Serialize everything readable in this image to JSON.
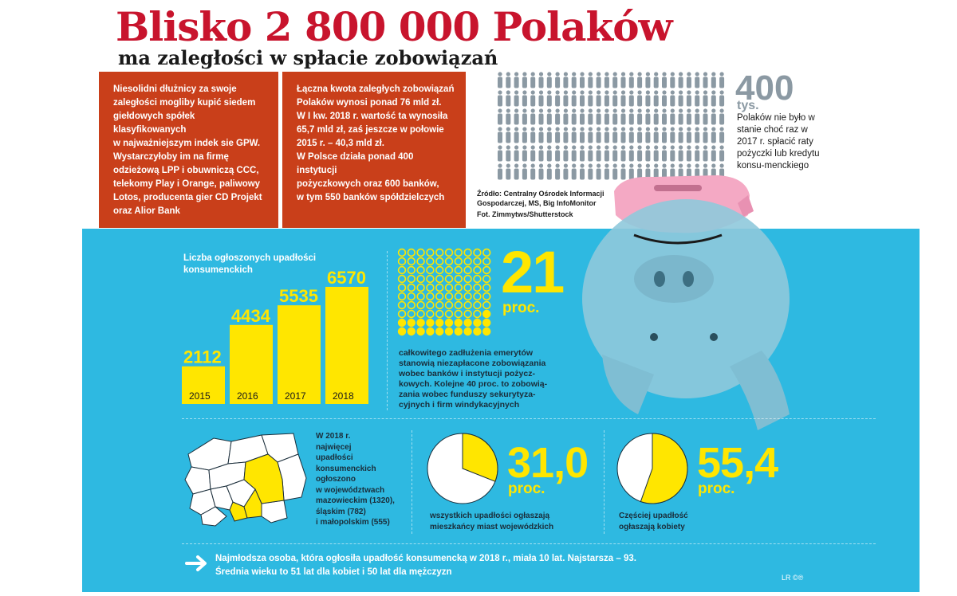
{
  "header": {
    "title": "Blisko 2 800 000 Polaków",
    "subtitle": "ma zaległości w spłacie zobowiązań"
  },
  "box1": {
    "lines": [
      "Niesolidni dłużnicy za swoje",
      "zaległości mogliby kupić siedem",
      "giełdowych spółek klasyfikowanych",
      "w najważniejszym indek sie GPW.",
      "Wystarczyłoby im na firmę",
      "odzieżową LPP i obuwniczą CCC,",
      "telekomy Play i Orange, paliwowy",
      "Lotos, producenta gier CD Projekt",
      "oraz Alior Bank"
    ]
  },
  "box2": {
    "lines": [
      "Łączna kwota zaległych zobowiązań",
      "Polaków wynosi ponad 76 mld zł.",
      "W I kw. 2018 r. wartość ta wynosiła",
      "65,7 mld zł, zaś jeszcze w połowie",
      "2015 r. – 40,3 mld zł.",
      "W Polsce działa ponad 400 instytucji",
      "pożyczkowych oraz 600 banków,",
      "w tym 550 banków spółdzielczych"
    ]
  },
  "stat400": {
    "number": "400",
    "unit": "tys.",
    "text": "Polaków nie było w stanie choć raz w 2017 r. spłacić raty pożyczki lub kredytu konsu-menckiego"
  },
  "source": {
    "line1": "Źródło: Centralny Ośrodek Informacji",
    "line2": "Gospodarczej, MS, Big InfoMonitor",
    "photo": "Fot. Zimmytws/Shutterstock"
  },
  "chart_data": [
    {
      "type": "bar",
      "title": "Liczba ogłoszonych upadłości konsumenckich",
      "categories": [
        "2015",
        "2016",
        "2017",
        "2018"
      ],
      "values": [
        2112,
        4434,
        5535,
        6570
      ],
      "value_labels": [
        "2112",
        "4434",
        "5535",
        "6570"
      ],
      "color": "#ffe600"
    },
    {
      "type": "pie",
      "values": [
        31.0,
        69.0
      ],
      "highlight_color": "#ffe600",
      "rest_color": "#ffffff"
    },
    {
      "type": "pie",
      "values": [
        55.4,
        44.6
      ],
      "highlight_color": "#ffe600",
      "rest_color": "#ffffff"
    }
  ],
  "stat21": {
    "number": "21",
    "unit": "proc.",
    "text": "całkowitego zadłużenia emerytów stanowią niezapłacone zobowiązania wobec banków i instytucji pożycz-kowych. Kolejne 40 proc. to zobowią-zania wobec funduszy sekurytyza-cyjnych i firm windykacyjnych",
    "filled_fraction": 0.21
  },
  "map": {
    "lines": [
      "W 2018 r.",
      "najwięcej",
      "upadłości",
      "konsumenckich",
      "ogłoszono",
      "w województwach",
      "mazowieckim (1320),",
      "śląskim (782)",
      "i małopolskim (555)"
    ]
  },
  "pie1": {
    "number": "31,0",
    "unit": "proc.",
    "lines": [
      "wszystkich upadłości ogłaszają",
      "mieszkańcy miast wojewódzkich"
    ]
  },
  "pie2": {
    "number": "55,4",
    "unit": "proc.",
    "lines": [
      "Częściej upadłość",
      "ogłaszają kobiety"
    ]
  },
  "footer": {
    "line1": "Najmłodsza osoba, która ogłosiła upadłość konsumencką w 2018 r., miała 10 lat. Najstarsza – 93.",
    "line2": "Średnia wieku to 51 lat dla kobiet i 50 lat dla mężczyzn",
    "credit": "LR ©℗"
  },
  "colors": {
    "accent_red": "#c8142d",
    "box_red": "#c93f1a",
    "water": "#2eb9e1",
    "yellow": "#ffe600",
    "people_gray": "#8b99a3"
  }
}
